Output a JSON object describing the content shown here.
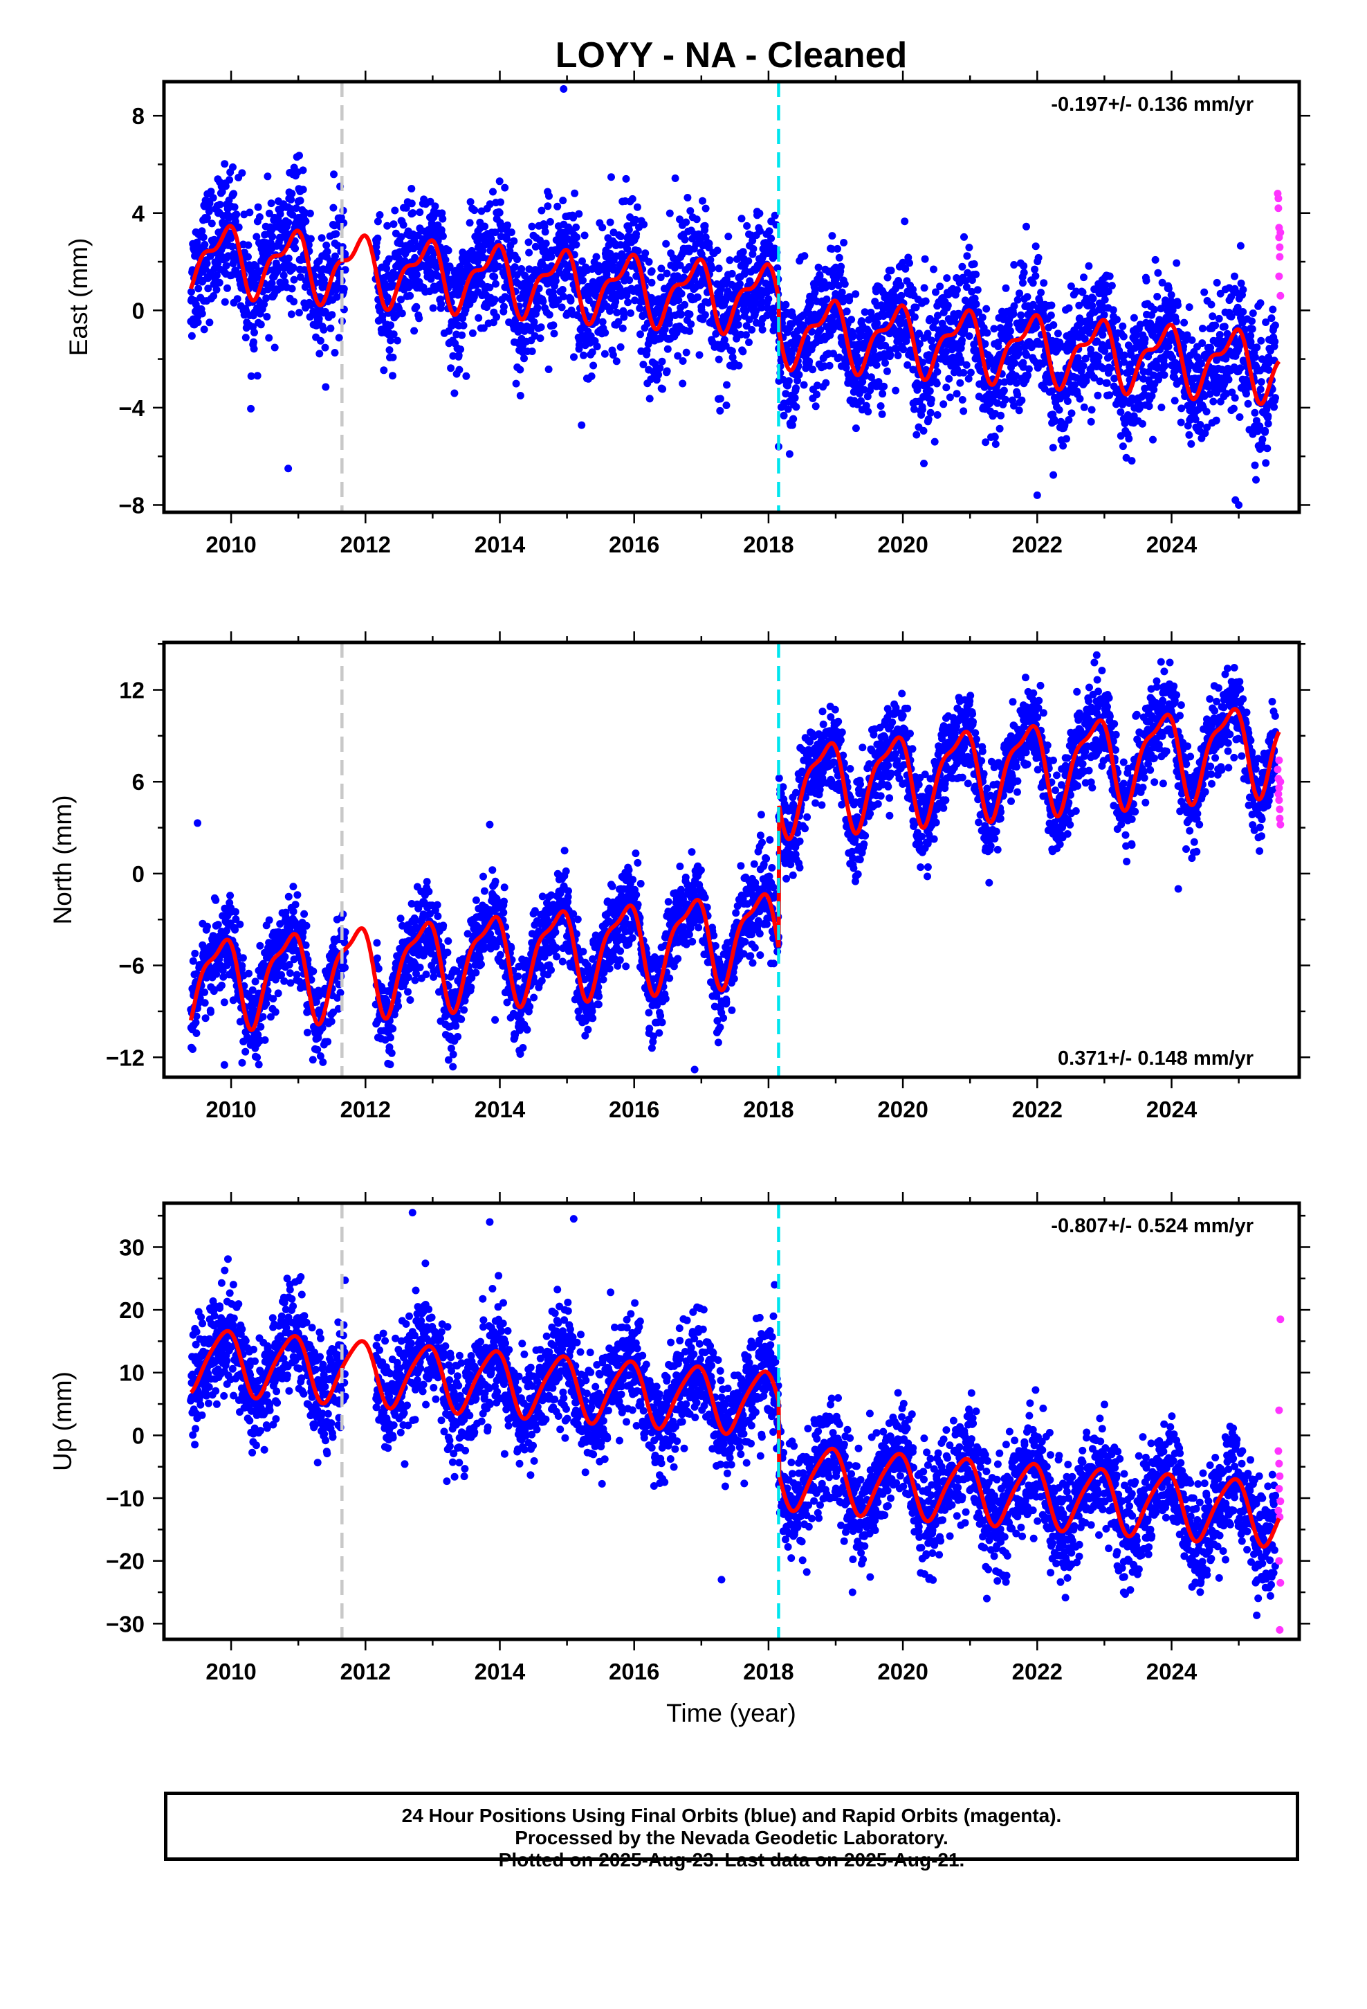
{
  "title": "LOYY  - NA - Cleaned",
  "x_axis_label": "Time (year)",
  "caption": {
    "line1": "24 Hour Positions Using Final Orbits (blue) and Rapid Orbits (magenta).",
    "line2": "Processed by the Nevada Geodetic Laboratory.",
    "line3": "Plotted on 2025-Aug-23. Last data on 2025-Aug-21."
  },
  "colors": {
    "final_orbits": "#0000ff",
    "rapid_orbits": "#ff33ff",
    "model_fit": "#ff0000",
    "event_2011": "#c8c8c8",
    "event_2018": "#00e5ee"
  },
  "chart_data": [
    {
      "type": "scatter",
      "ylabel": "East (mm)",
      "rate_label": "-0.197+/- 0.136 mm/yr",
      "rate_position": "top-right",
      "xlim": [
        2009.0,
        2025.9
      ],
      "ylim": [
        -8.3,
        9.4
      ],
      "xticks": [
        2010,
        2012,
        2014,
        2016,
        2018,
        2020,
        2022,
        2024
      ],
      "yticks": [
        -8,
        -4,
        0,
        4,
        8
      ],
      "ytick_labels": [
        "−8",
        "−4",
        "0",
        "4",
        "8"
      ],
      "event_lines": [
        {
          "x": 2011.65,
          "color": "#c8c8c8",
          "style": "dashed"
        },
        {
          "x": 2018.15,
          "color": "#00e5ee",
          "style": "dashed"
        }
      ],
      "data_gap": [
        2011.7,
        2012.15
      ],
      "fit": {
        "description": "trend + annual + semi-annual + offset at 2018.15",
        "intercept_2009": 2.3,
        "rate": -0.197,
        "offset_2018": -1.3,
        "annual_amp": 1.2,
        "annual_phase": 2.3,
        "semiannual_amp": 0.55,
        "semiannual_phase": 1.0
      },
      "series": [
        {
          "name": "Final Orbits",
          "color": "#0000ff",
          "x_range": [
            2009.4,
            2025.55
          ],
          "scatter_sd": 1.3,
          "outliers": [
            [
              2014.95,
              9.1
            ],
            [
              2010.85,
              -6.5
            ],
            [
              2024.95,
              -7.8
            ],
            [
              2025.0,
              -8.0
            ],
            [
              2022.0,
              -7.6
            ],
            [
              2018.15,
              -5.6
            ]
          ]
        },
        {
          "name": "Rapid Orbits",
          "color": "#ff33ff",
          "points": [
            [
              2025.58,
              4.8
            ],
            [
              2025.59,
              4.2
            ],
            [
              2025.6,
              3.4
            ],
            [
              2025.6,
              3.0
            ],
            [
              2025.61,
              2.6
            ],
            [
              2025.61,
              2.2
            ],
            [
              2025.62,
              0.6
            ],
            [
              2025.6,
              1.4
            ],
            [
              2025.59,
              4.6
            ],
            [
              2025.62,
              3.2
            ]
          ]
        }
      ]
    },
    {
      "type": "scatter",
      "ylabel": "North (mm)",
      "rate_label": "0.371+/- 0.148 mm/yr",
      "rate_position": "bottom-right",
      "xlim": [
        2009.0,
        2025.9
      ],
      "ylim": [
        -13.3,
        15.1
      ],
      "xticks": [
        2010,
        2012,
        2014,
        2016,
        2018,
        2020,
        2022,
        2024
      ],
      "yticks": [
        -12,
        -6,
        0,
        6,
        12
      ],
      "ytick_labels": [
        "−12",
        "−6",
        "0",
        "6",
        "12"
      ],
      "event_lines": [
        {
          "x": 2011.65,
          "color": "#c8c8c8",
          "style": "dashed"
        },
        {
          "x": 2018.15,
          "color": "#00e5ee",
          "style": "dashed"
        }
      ],
      "data_gap": [
        2011.7,
        2012.15
      ],
      "fit": {
        "description": "trend + annual + semi-annual + offset at 2018.15",
        "intercept_2009": -7.2,
        "rate": 0.371,
        "offset_2018": 9.5,
        "annual_amp": 2.7,
        "annual_phase": 2.6,
        "semiannual_amp": 0.9,
        "semiannual_phase": 1.2
      },
      "series": [
        {
          "name": "Final Orbits",
          "color": "#0000ff",
          "x_range": [
            2009.4,
            2025.55
          ],
          "scatter_sd": 1.4,
          "outliers": [
            [
              2009.5,
              3.3
            ],
            [
              2013.85,
              3.2
            ],
            [
              2016.9,
              -12.8
            ],
            [
              2024.1,
              -1.0
            ],
            [
              2009.9,
              -12.5
            ]
          ]
        },
        {
          "name": "Rapid Orbits",
          "color": "#ff33ff",
          "points": [
            [
              2025.58,
              6.8
            ],
            [
              2025.59,
              6.2
            ],
            [
              2025.6,
              5.6
            ],
            [
              2025.6,
              4.8
            ],
            [
              2025.61,
              4.2
            ],
            [
              2025.61,
              3.6
            ],
            [
              2025.62,
              3.2
            ],
            [
              2025.6,
              7.4
            ],
            [
              2025.59,
              5.2
            ],
            [
              2025.62,
              6.0
            ]
          ]
        }
      ]
    },
    {
      "type": "scatter",
      "ylabel": "Up (mm)",
      "rate_label": "-0.807+/- 0.524 mm/yr",
      "rate_position": "top-right",
      "xlim": [
        2009.0,
        2025.9
      ],
      "ylim": [
        -32.5,
        37.0
      ],
      "xticks": [
        2010,
        2012,
        2014,
        2016,
        2018,
        2020,
        2022,
        2024
      ],
      "yticks": [
        -30,
        -20,
        -10,
        0,
        10,
        20,
        30
      ],
      "ytick_labels": [
        "−30",
        "−20",
        "−10",
        "0",
        "10",
        "20",
        "30"
      ],
      "x_axis_label": "Time (year)",
      "event_lines": [
        {
          "x": 2011.65,
          "color": "#c8c8c8",
          "style": "dashed"
        },
        {
          "x": 2018.15,
          "color": "#00e5ee",
          "style": "dashed"
        }
      ],
      "data_gap": [
        2011.7,
        2012.15
      ],
      "fit": {
        "description": "trend + annual + semi-annual + offset at 2018.15",
        "intercept_2009": 12.5,
        "rate": -0.807,
        "offset_2018": -11.5,
        "annual_amp": 5.0,
        "annual_phase": 2.2,
        "semiannual_amp": 0.8,
        "semiannual_phase": 0.8
      },
      "series": [
        {
          "name": "Final Orbits",
          "color": "#0000ff",
          "x_range": [
            2009.4,
            2025.55
          ],
          "scatter_sd": 4.3,
          "outliers": [
            [
              2012.7,
              35.5
            ],
            [
              2013.85,
              34.0
            ],
            [
              2015.1,
              34.5
            ],
            [
              2017.3,
              -23.0
            ],
            [
              2019.25,
              -25.0
            ],
            [
              2021.25,
              -26.0
            ]
          ]
        },
        {
          "name": "Rapid Orbits",
          "color": "#ff33ff",
          "points": [
            [
              2025.62,
              18.5
            ],
            [
              2025.6,
              4.0
            ],
            [
              2025.59,
              -2.5
            ],
            [
              2025.6,
              -4.5
            ],
            [
              2025.61,
              -6.5
            ],
            [
              2025.6,
              -8.5
            ],
            [
              2025.62,
              -10.5
            ],
            [
              2025.61,
              -13.0
            ],
            [
              2025.6,
              -20.0
            ],
            [
              2025.62,
              -23.5
            ],
            [
              2025.61,
              -31.0
            ],
            [
              2025.59,
              -12.0
            ]
          ]
        }
      ]
    }
  ]
}
